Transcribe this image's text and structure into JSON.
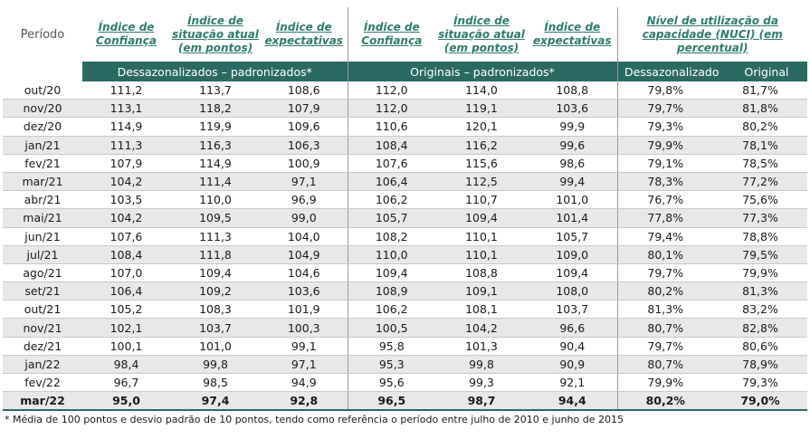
{
  "headers": {
    "periodo": "Período",
    "ic1": "Índice de Confiança",
    "isa1": "Índice de situação atual (em pontos)",
    "ie1": "Índice de expectativas",
    "ic2": "Índice de Confiança",
    "isa2": "Índice de situação atual (em pontos)",
    "ie2": "Índice de expectativas",
    "nuci": "Nível de utilização da capacidade (NUCI) (em percentual)"
  },
  "subheaders": {
    "dessaz_padr": "Dessazonalizados – padronizados*",
    "orig_padr": "Originais – padronizados*",
    "dessaz": "Dessazonalizado",
    "original": "Original"
  },
  "rows": [
    [
      "out/20",
      "111,2",
      "113,7",
      "108,6",
      "112,0",
      "114,0",
      "108,8",
      "79,8%",
      "81,7%"
    ],
    [
      "nov/20",
      "113,1",
      "118,2",
      "107,9",
      "112,0",
      "119,1",
      "103,6",
      "79,7%",
      "81,8%"
    ],
    [
      "dez/20",
      "114,9",
      "119,9",
      "109,6",
      "110,6",
      "120,1",
      "99,9",
      "79,3%",
      "80,2%"
    ],
    [
      "jan/21",
      "111,3",
      "116,3",
      "106,3",
      "108,4",
      "116,2",
      "99,6",
      "79,9%",
      "78,1%"
    ],
    [
      "fev/21",
      "107,9",
      "114,9",
      "100,9",
      "107,6",
      "115,6",
      "98,6",
      "79,1%",
      "78,5%"
    ],
    [
      "mar/21",
      "104,2",
      "111,4",
      "97,1",
      "106,4",
      "112,5",
      "99,4",
      "78,3%",
      "77,2%"
    ],
    [
      "abr/21",
      "103,5",
      "110,0",
      "96,9",
      "106,2",
      "110,7",
      "101,0",
      "76,7%",
      "75,6%"
    ],
    [
      "mai/21",
      "104,2",
      "109,5",
      "99,0",
      "105,7",
      "109,4",
      "101,4",
      "77,8%",
      "77,3%"
    ],
    [
      "jun/21",
      "107,6",
      "111,3",
      "104,0",
      "108,2",
      "110,1",
      "105,7",
      "79,4%",
      "78,8%"
    ],
    [
      "jul/21",
      "108,4",
      "111,8",
      "104,9",
      "110,0",
      "110,1",
      "109,0",
      "80,1%",
      "79,5%"
    ],
    [
      "ago/21",
      "107,0",
      "109,4",
      "104,6",
      "109,4",
      "108,8",
      "109,4",
      "79,7%",
      "79,9%"
    ],
    [
      "set/21",
      "106,4",
      "109,2",
      "103,6",
      "108,9",
      "109,1",
      "108,0",
      "80,2%",
      "81,3%"
    ],
    [
      "out/21",
      "105,2",
      "108,3",
      "101,9",
      "106,2",
      "108,1",
      "103,7",
      "81,3%",
      "83,2%"
    ],
    [
      "nov/21",
      "102,1",
      "103,7",
      "100,3",
      "100,5",
      "104,2",
      "96,6",
      "80,7%",
      "82,8%"
    ],
    [
      "dez/21",
      "100,1",
      "101,0",
      "99,1",
      "95,8",
      "101,3",
      "90,4",
      "79,7%",
      "80,6%"
    ],
    [
      "jan/22",
      "98,4",
      "99,8",
      "97,1",
      "95,3",
      "99,8",
      "90,9",
      "80,7%",
      "78,9%"
    ],
    [
      "fev/22",
      "96,7",
      "98,5",
      "94,9",
      "95,6",
      "99,3",
      "92,1",
      "79,9%",
      "79,3%"
    ],
    [
      "mar/22",
      "95,0",
      "97,4",
      "92,8",
      "96,5",
      "98,7",
      "94,4",
      "80,2%",
      "79,0%"
    ]
  ],
  "footnote": "* Média de 100 pontos e desvio padrão de 10 pontos, tendo como referência o período entre julho de 2010 e junho de 2015"
}
